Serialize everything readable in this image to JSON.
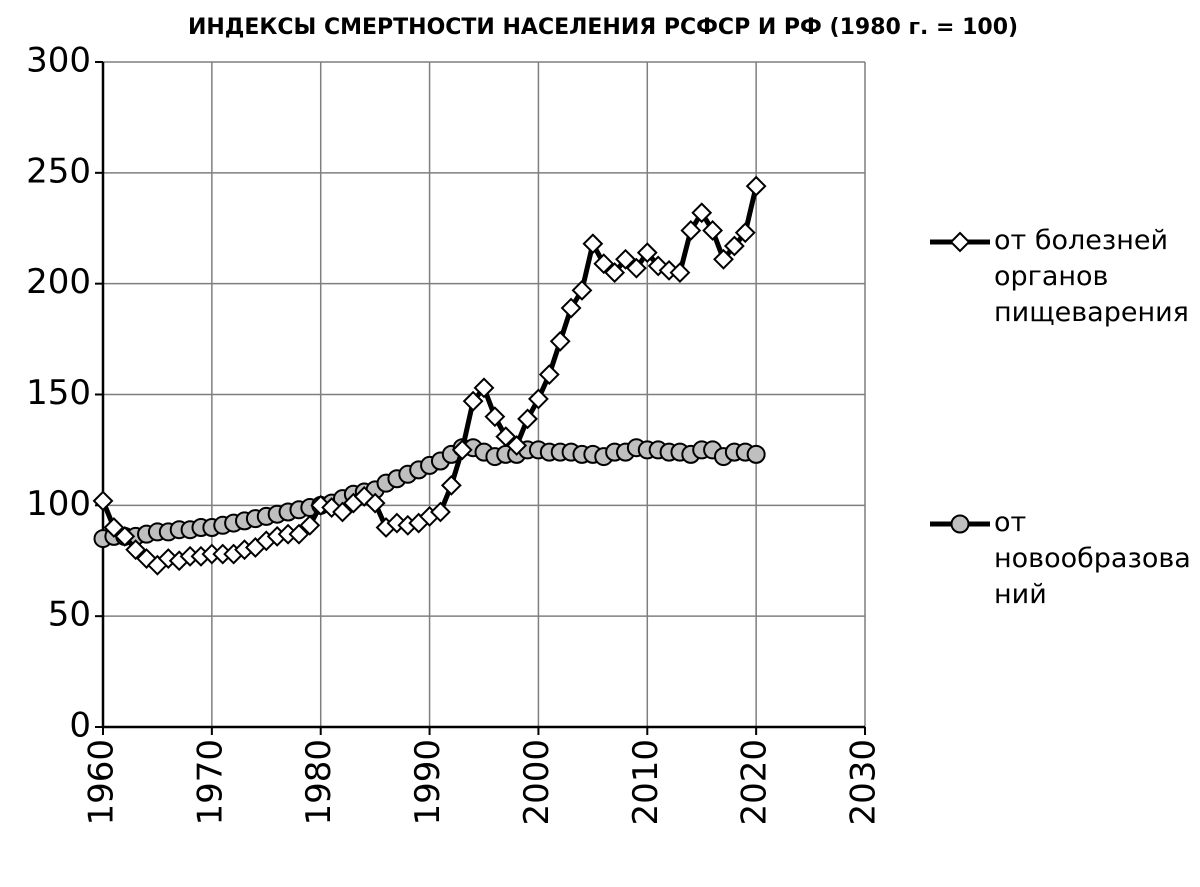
{
  "chart_data": {
    "type": "line",
    "title": "ИНДЕКСЫ СМЕРТНОСТИ НАСЕЛЕНИЯ РСФСР И РФ (1980 г. = 100)",
    "x": [
      1960,
      1961,
      1962,
      1963,
      1964,
      1965,
      1966,
      1967,
      1968,
      1969,
      1970,
      1971,
      1972,
      1973,
      1974,
      1975,
      1976,
      1977,
      1978,
      1979,
      1980,
      1981,
      1982,
      1983,
      1984,
      1985,
      1986,
      1987,
      1988,
      1989,
      1990,
      1991,
      1992,
      1993,
      1994,
      1995,
      1996,
      1997,
      1998,
      1999,
      2000,
      2001,
      2002,
      2003,
      2004,
      2005,
      2006,
      2007,
      2008,
      2009,
      2010,
      2011,
      2012,
      2013,
      2014,
      2015,
      2016,
      2017,
      2018,
      2019,
      2020
    ],
    "series": [
      {
        "name": "от болезней органов пищеварения",
        "color": "#000000",
        "marker": "diamond",
        "values": [
          102,
          90,
          86,
          80,
          76,
          73,
          76,
          75,
          77,
          77,
          78,
          78,
          78,
          80,
          81,
          84,
          86,
          87,
          87,
          91,
          100,
          99,
          97,
          101,
          104,
          101,
          90,
          92,
          91,
          92,
          95,
          97,
          109,
          125,
          147,
          153,
          140,
          131,
          127,
          139,
          148,
          159,
          174,
          189,
          197,
          218,
          209,
          205,
          211,
          207,
          214,
          208,
          206,
          205,
          224,
          232,
          224,
          211,
          217,
          223,
          244
        ]
      },
      {
        "name": "от новообразований",
        "color": "#000000",
        "marker": "circle",
        "values": [
          85,
          86,
          86,
          86,
          87,
          88,
          88,
          89,
          89,
          90,
          90,
          91,
          92,
          93,
          94,
          95,
          96,
          97,
          98,
          99,
          100,
          101,
          103,
          105,
          106,
          107,
          110,
          112,
          114,
          116,
          118,
          120,
          123,
          126,
          126,
          124,
          122,
          123,
          123,
          125,
          125,
          124,
          124,
          124,
          123,
          123,
          122,
          124,
          124,
          126,
          125,
          125,
          124,
          124,
          123,
          125,
          125,
          122,
          124,
          124,
          123
        ]
      }
    ],
    "xlim": [
      1960,
      2030
    ],
    "xticks": [
      1960,
      1970,
      1980,
      1990,
      2000,
      2010,
      2020,
      2030
    ],
    "ylim": [
      0,
      300
    ],
    "yticks": [
      0,
      50,
      100,
      150,
      200,
      250,
      300
    ],
    "grid": true,
    "legend": "right"
  }
}
